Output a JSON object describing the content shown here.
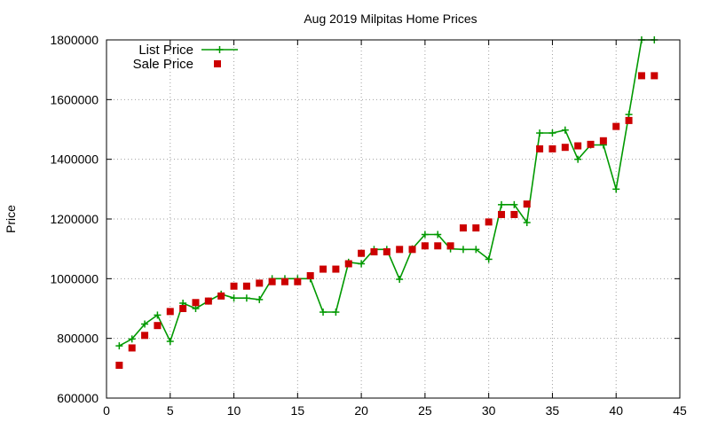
{
  "chart_data": {
    "type": "line",
    "title": "Aug 2019 Milpitas Home Prices",
    "xlabel": "",
    "ylabel": "Price",
    "xlim": [
      0,
      45
    ],
    "ylim": [
      600000,
      1800000
    ],
    "xticks": [
      0,
      5,
      10,
      15,
      20,
      25,
      30,
      35,
      40,
      45
    ],
    "yticks": [
      600000,
      800000,
      1000000,
      1200000,
      1400000,
      1600000,
      1800000
    ],
    "grid": true,
    "legend_position": "top-left",
    "series": [
      {
        "name": "List Price",
        "style": "line-with-plus-markers",
        "color": "#009900",
        "x": [
          1,
          2,
          3,
          4,
          5,
          6,
          7,
          8,
          9,
          10,
          11,
          12,
          13,
          14,
          15,
          16,
          17,
          18,
          19,
          20,
          21,
          22,
          23,
          24,
          25,
          26,
          27,
          28,
          29,
          30,
          31,
          32,
          33,
          34,
          35,
          36,
          37,
          38,
          39,
          40,
          41,
          42,
          43
        ],
        "y": [
          775000,
          798000,
          848000,
          878000,
          790000,
          918000,
          900000,
          925000,
          948000,
          935000,
          935000,
          930000,
          1000000,
          1000000,
          1000000,
          1000000,
          888000,
          888000,
          1055000,
          1050000,
          1098000,
          1098000,
          998000,
          1100000,
          1148000,
          1148000,
          1100000,
          1098000,
          1098000,
          1065000,
          1248000,
          1248000,
          1188000,
          1488000,
          1488000,
          1498000,
          1400000,
          1448000,
          1448000,
          1300000,
          1550000,
          1800000,
          1800000
        ]
      },
      {
        "name": "Sale Price",
        "style": "square-markers",
        "color": "#cc0000",
        "x": [
          1,
          2,
          3,
          4,
          5,
          6,
          7,
          8,
          9,
          10,
          11,
          12,
          13,
          14,
          15,
          16,
          17,
          18,
          19,
          20,
          21,
          22,
          23,
          24,
          25,
          26,
          27,
          28,
          29,
          30,
          31,
          32,
          33,
          34,
          35,
          36,
          37,
          38,
          39,
          40,
          41,
          42,
          43
        ],
        "y": [
          710000,
          768000,
          810000,
          843000,
          890000,
          900000,
          920000,
          925000,
          942000,
          975000,
          975000,
          985000,
          990000,
          990000,
          990000,
          1010000,
          1032000,
          1032000,
          1050000,
          1085000,
          1090000,
          1090000,
          1098000,
          1098000,
          1110000,
          1110000,
          1110000,
          1170000,
          1170000,
          1190000,
          1215000,
          1215000,
          1250000,
          1435000,
          1435000,
          1440000,
          1445000,
          1450000,
          1462000,
          1510000,
          1530000,
          1680000,
          1680000
        ]
      }
    ]
  }
}
